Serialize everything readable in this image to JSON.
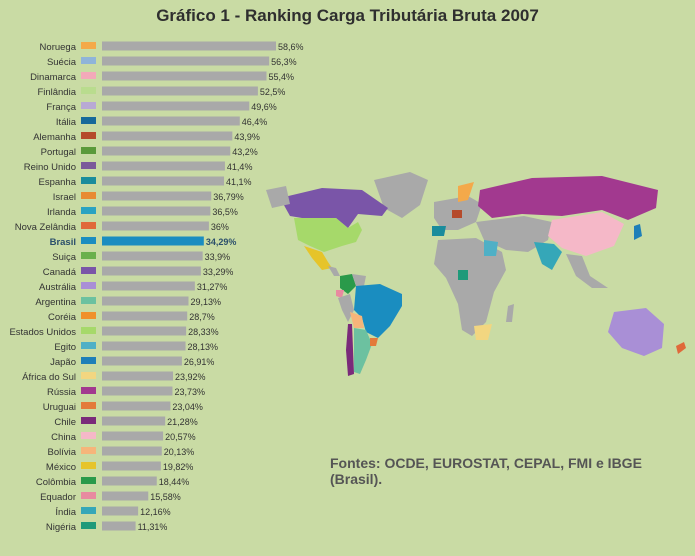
{
  "title": "Gráfico 1 - Ranking Carga Tributária Bruta 2007",
  "source": "Fontes: OCDE, EUROSTAT, CEPAL, FMI e IBGE (Brasil).",
  "colors": {
    "background": "#c9dba4",
    "bar": "#a9a9a9",
    "highlight": "#1a8dc0",
    "highlight_label": "#2b4f6b"
  },
  "chart_data": {
    "type": "bar",
    "orientation": "horizontal",
    "title": "Gráfico 1 - Ranking Carga Tributária Bruta 2007",
    "xlabel": "",
    "ylabel": "",
    "xlim": [
      0,
      58.6
    ],
    "grid": false,
    "highlight": "Brasil",
    "bars": [
      {
        "country": "Noruega",
        "value": 58.6,
        "label": "58,6%",
        "marker": "#f4a94a"
      },
      {
        "country": "Suécia",
        "value": 56.3,
        "label": "56,3%",
        "marker": "#8fb4d9"
      },
      {
        "country": "Dinamarca",
        "value": 55.4,
        "label": "55,4%",
        "marker": "#f3a9b9"
      },
      {
        "country": "Finlândia",
        "value": 52.5,
        "label": "52,5%",
        "marker": "#b9dc8e"
      },
      {
        "country": "França",
        "value": 49.6,
        "label": "49,6%",
        "marker": "#b8a9d4"
      },
      {
        "country": "Itália",
        "value": 46.4,
        "label": "46,4%",
        "marker": "#17699a"
      },
      {
        "country": "Alemanha",
        "value": 43.9,
        "label": "43,9%",
        "marker": "#b54a2b"
      },
      {
        "country": "Portugal",
        "value": 43.2,
        "label": "43,2%",
        "marker": "#5a9a3a"
      },
      {
        "country": "Reino Unido",
        "value": 41.4,
        "label": "41,4%",
        "marker": "#7b5a9a"
      },
      {
        "country": "Espanha",
        "value": 41.1,
        "label": "41,1%",
        "marker": "#1a8c9c"
      },
      {
        "country": "Israel",
        "value": 36.79,
        "label": "36,79%",
        "marker": "#e88a33"
      },
      {
        "country": "Irlanda",
        "value": 36.5,
        "label": "36,5%",
        "marker": "#2aa3c2"
      },
      {
        "country": "Nova Zelândia",
        "value": 36,
        "label": "36%",
        "marker": "#e0693a"
      },
      {
        "country": "Brasil",
        "value": 34.29,
        "label": "34,29%",
        "marker": "#1a8dc0"
      },
      {
        "country": "Suiça",
        "value": 33.9,
        "label": "33,9%",
        "marker": "#6ab04c"
      },
      {
        "country": "Canadá",
        "value": 33.29,
        "label": "33,29%",
        "marker": "#7a55a8"
      },
      {
        "country": "Austrália",
        "value": 31.27,
        "label": "31,27%",
        "marker": "#a98fd6"
      },
      {
        "country": "Argentina",
        "value": 29.13,
        "label": "29,13%",
        "marker": "#6cc1a0"
      },
      {
        "country": "Coréia",
        "value": 28.7,
        "label": "28,7%",
        "marker": "#f0902a"
      },
      {
        "country": "Estados Unidos",
        "value": 28.33,
        "label": "28,33%",
        "marker": "#a6d96a"
      },
      {
        "country": "Egito",
        "value": 28.13,
        "label": "28,13%",
        "marker": "#4fb0c6"
      },
      {
        "country": "Japão",
        "value": 26.91,
        "label": "26,91%",
        "marker": "#1e7fb8"
      },
      {
        "country": "África do Sul",
        "value": 23.92,
        "label": "23,92%",
        "marker": "#f2d680"
      },
      {
        "country": "Rússia",
        "value": 23.73,
        "label": "23,73%",
        "marker": "#a2398f"
      },
      {
        "country": "Uruguai",
        "value": 23.04,
        "label": "23,04%",
        "marker": "#e37a3a"
      },
      {
        "country": "Chile",
        "value": 21.28,
        "label": "21,28%",
        "marker": "#7a2a7a"
      },
      {
        "country": "China",
        "value": 20.57,
        "label": "20,57%",
        "marker": "#f5b8c8"
      },
      {
        "country": "Bolívia",
        "value": 20.13,
        "label": "20,13%",
        "marker": "#f6b57a"
      },
      {
        "country": "México",
        "value": 19.82,
        "label": "19,82%",
        "marker": "#e6c42a"
      },
      {
        "country": "Colômbia",
        "value": 18.44,
        "label": "18,44%",
        "marker": "#2a9a4a"
      },
      {
        "country": "Equador",
        "value": 15.58,
        "label": "15,58%",
        "marker": "#e88aa0"
      },
      {
        "country": "Índia",
        "value": 12.16,
        "label": "12,16%",
        "marker": "#35a7b8"
      },
      {
        "country": "Nigéria",
        "value": 11.31,
        "label": "11,31%",
        "marker": "#1f9a7a"
      }
    ]
  },
  "map": {
    "default_land": "#a9a9a9",
    "regions": [
      {
        "name": "Canadá",
        "color": "#7a55a8"
      },
      {
        "name": "Estados Unidos",
        "color": "#a6d96a"
      },
      {
        "name": "México",
        "color": "#e6c42a"
      },
      {
        "name": "Colômbia",
        "color": "#2a9a4a"
      },
      {
        "name": "Equador",
        "color": "#e88aa0"
      },
      {
        "name": "Brasil",
        "color": "#1a8dc0"
      },
      {
        "name": "Bolívia",
        "color": "#f6b57a"
      },
      {
        "name": "Chile",
        "color": "#7a2a7a"
      },
      {
        "name": "Argentina",
        "color": "#6cc1a0"
      },
      {
        "name": "Uruguai",
        "color": "#e37a3a"
      },
      {
        "name": "Rússia",
        "color": "#a2398f"
      },
      {
        "name": "China",
        "color": "#f5b8c8"
      },
      {
        "name": "Índia",
        "color": "#35a7b8"
      },
      {
        "name": "Austrália",
        "color": "#a98fd6"
      },
      {
        "name": "Nova Zelândia",
        "color": "#e0693a"
      },
      {
        "name": "África do Sul",
        "color": "#f2d680"
      },
      {
        "name": "Egito",
        "color": "#4fb0c6"
      },
      {
        "name": "Espanha",
        "color": "#1a8c9c"
      },
      {
        "name": "Alemanha",
        "color": "#b54a2b"
      },
      {
        "name": "Japão",
        "color": "#1e7fb8"
      },
      {
        "name": "Nigéria",
        "color": "#1f9a7a"
      },
      {
        "name": "Noruega",
        "color": "#f4a94a"
      }
    ]
  }
}
